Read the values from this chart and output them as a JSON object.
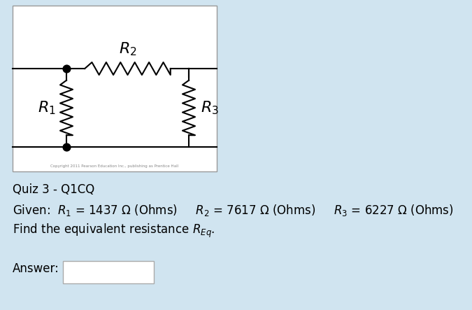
{
  "bg_color": "#d0e4f0",
  "circuit_bg": "#ffffff",
  "circuit_border": "#888888",
  "title": "Quiz 3 - Q1CQ",
  "copyright_text": "Copyright 2011 Pearson Education Inc., publishing as Prentice Hall",
  "R1_label": "$R_1$",
  "R2_label": "$R_2$",
  "R3_label": "$R_3$",
  "label_fontsize": 14,
  "text_fontsize": 12
}
